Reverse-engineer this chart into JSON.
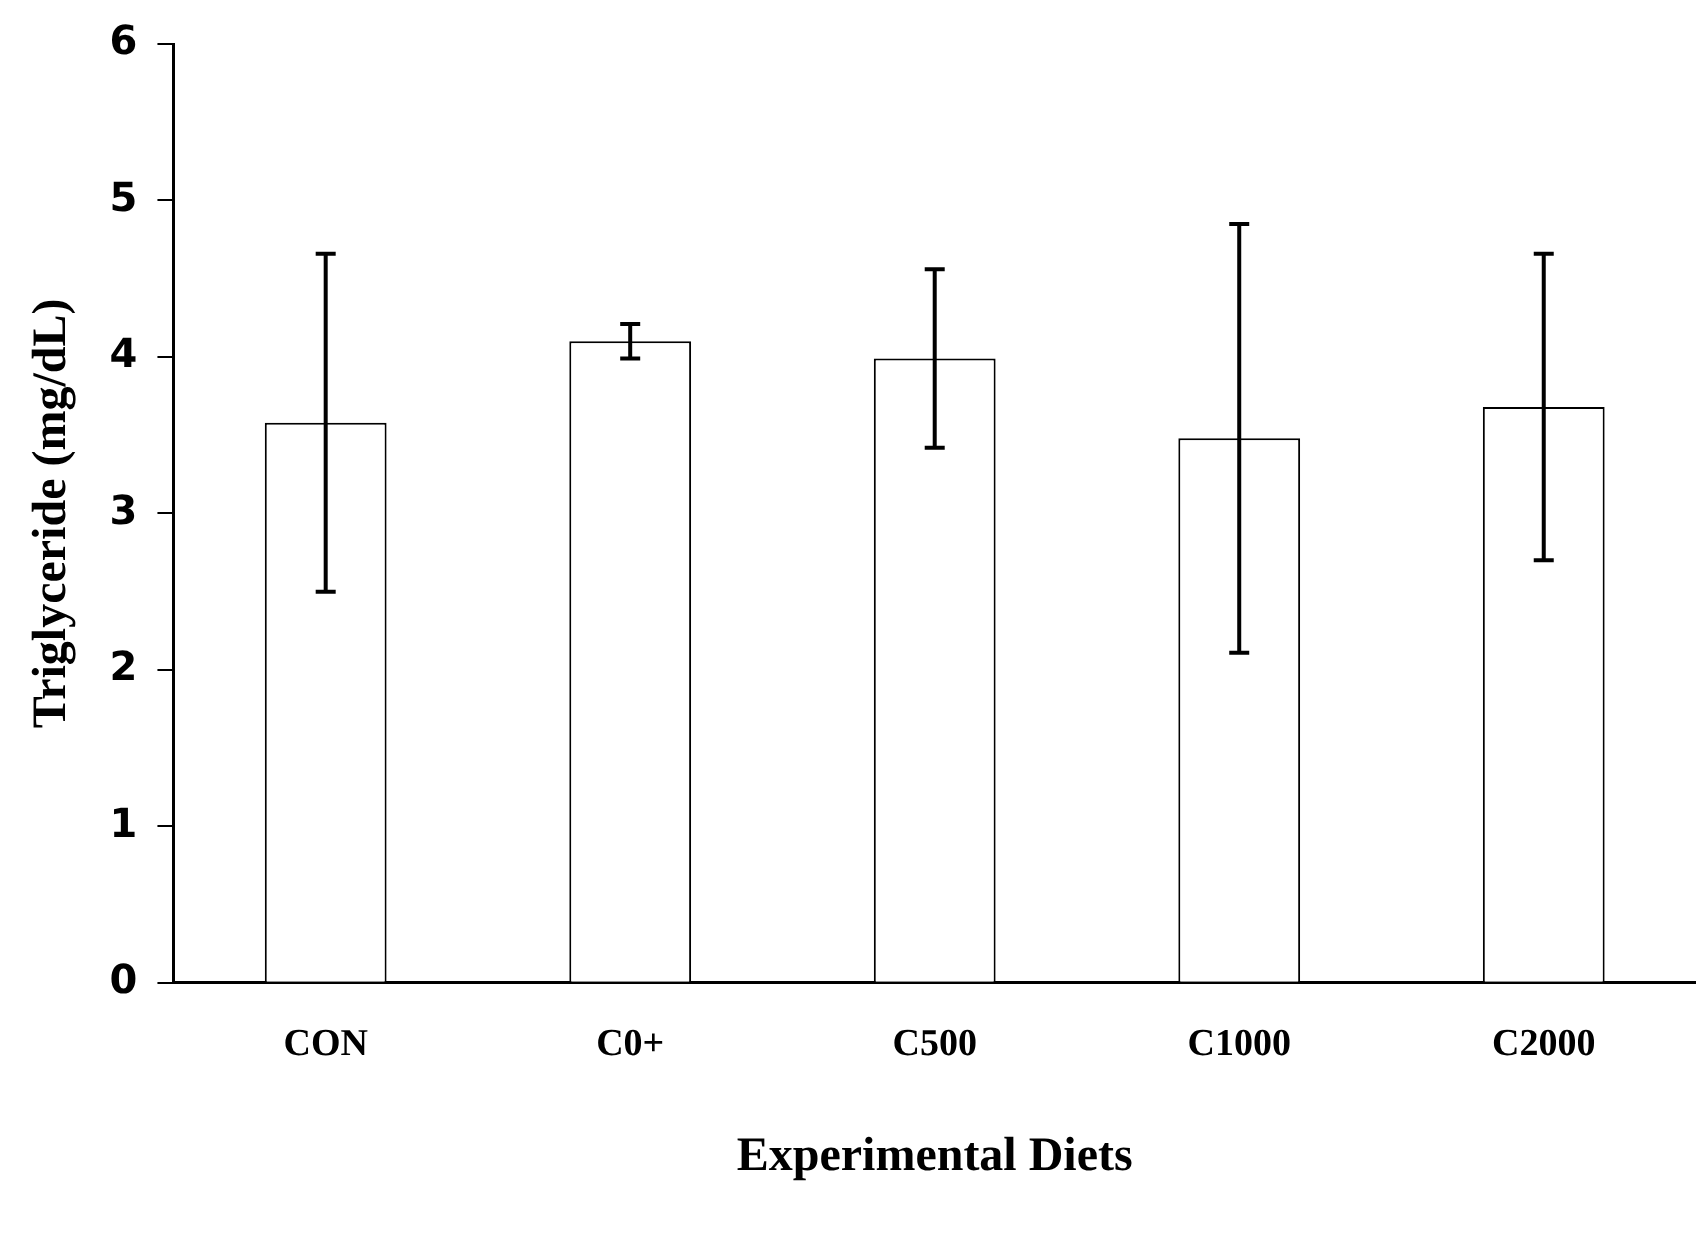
{
  "chart_data": {
    "type": "bar",
    "xlabel": "Experimental Diets",
    "ylabel": "Triglyceride (mg/dL)",
    "categories": [
      "CON",
      "C0+",
      "C500",
      "C1000",
      "C2000"
    ],
    "values": [
      3.58,
      4.1,
      3.99,
      3.48,
      3.68
    ],
    "errors": [
      1.08,
      0.11,
      0.57,
      1.37,
      0.98
    ],
    "color": "#ffffff",
    "ylim": [
      0,
      6
    ],
    "yticks": [
      0,
      1,
      2,
      3,
      4,
      5,
      6
    ],
    "grid": false,
    "legend": false
  }
}
